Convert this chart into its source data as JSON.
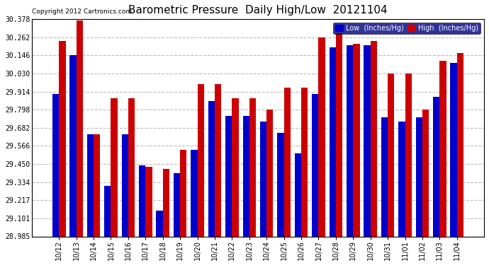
{
  "title": "Barometric Pressure  Daily High/Low  20121104",
  "copyright": "Copyright 2012 Cartronics.com",
  "legend_low": "Low  (Inches/Hg)",
  "legend_high": "High  (Inches/Hg)",
  "background_color": "#ffffff",
  "plot_background": "#ffffff",
  "low_color": "#0000cc",
  "high_color": "#cc0000",
  "legend_low_bg": "#0000cc",
  "legend_high_bg": "#cc0000",
  "categories": [
    "10/12",
    "10/13",
    "10/14",
    "10/15",
    "10/16",
    "10/17",
    "10/18",
    "10/19",
    "10/20",
    "10/21",
    "10/22",
    "10/23",
    "10/24",
    "10/25",
    "10/26",
    "10/27",
    "10/28",
    "10/29",
    "10/30",
    "10/31",
    "11/01",
    "11/02",
    "11/03",
    "11/04"
  ],
  "low_values": [
    29.9,
    30.146,
    29.638,
    29.31,
    29.638,
    29.44,
    29.15,
    29.39,
    29.54,
    29.855,
    29.76,
    29.76,
    29.72,
    29.65,
    29.52,
    29.9,
    30.2,
    30.21,
    30.21,
    29.75,
    29.72,
    29.75,
    29.88,
    30.1
  ],
  "high_values": [
    30.24,
    30.37,
    29.64,
    29.87,
    29.87,
    29.43,
    29.42,
    29.54,
    29.96,
    29.96,
    29.87,
    29.87,
    29.8,
    29.94,
    29.94,
    30.262,
    30.29,
    30.22,
    30.24,
    30.03,
    30.03,
    29.8,
    30.11,
    30.16
  ],
  "ylim_min": 28.985,
  "ylim_max": 30.378,
  "yticks": [
    28.985,
    29.101,
    29.217,
    29.334,
    29.45,
    29.566,
    29.682,
    29.798,
    29.914,
    30.03,
    30.146,
    30.262,
    30.378
  ],
  "grid_color": "#bbbbbb",
  "title_fontsize": 11,
  "tick_fontsize": 7,
  "copyright_fontsize": 6.5,
  "legend_fontsize": 7,
  "bar_width": 0.38
}
